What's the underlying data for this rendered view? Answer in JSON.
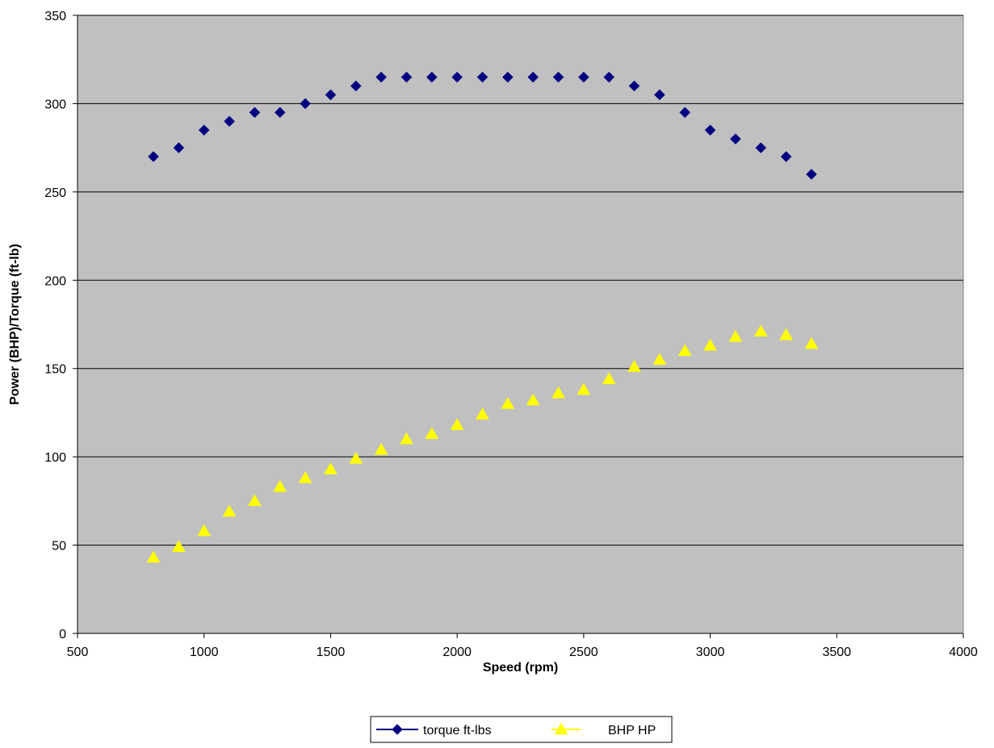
{
  "chart_data": {
    "type": "scatter",
    "title": "",
    "xlabel": "Speed (rpm)",
    "ylabel": "Power (BHP)/Torque (ft-lb)",
    "xlim": [
      500,
      4000
    ],
    "ylim": [
      0,
      350
    ],
    "xticks": [
      500,
      1000,
      1500,
      2000,
      2500,
      3000,
      3500,
      4000
    ],
    "yticks": [
      0,
      50,
      100,
      150,
      200,
      250,
      300,
      350
    ],
    "grid": "horizontal",
    "legend_position": "bottom",
    "colors": {
      "plot_background": "#c0c0c0",
      "gridline": "#000000"
    },
    "series": [
      {
        "name": "torque ft-lbs",
        "marker": "diamond",
        "color": "#000080",
        "x": [
          800,
          900,
          1000,
          1100,
          1200,
          1300,
          1400,
          1500,
          1600,
          1700,
          1800,
          1900,
          2000,
          2100,
          2200,
          2300,
          2400,
          2500,
          2600,
          2700,
          2800,
          2900,
          3000,
          3100,
          3200,
          3300,
          3400
        ],
        "y": [
          270,
          275,
          285,
          290,
          295,
          295,
          300,
          305,
          310,
          315,
          315,
          315,
          315,
          315,
          315,
          315,
          315,
          315,
          315,
          310,
          305,
          295,
          285,
          280,
          275,
          270,
          260
        ]
      },
      {
        "name": "BHP HP",
        "marker": "triangle",
        "color": "#ffff00",
        "x": [
          800,
          900,
          1000,
          1100,
          1200,
          1300,
          1400,
          1500,
          1600,
          1700,
          1800,
          1900,
          2000,
          2100,
          2200,
          2300,
          2400,
          2500,
          2600,
          2700,
          2800,
          2900,
          3000,
          3100,
          3200,
          3300,
          3400
        ],
        "y": [
          43,
          49,
          58,
          69,
          75,
          83,
          88,
          93,
          99,
          104,
          110,
          113,
          118,
          124,
          130,
          132,
          136,
          138,
          144,
          151,
          155,
          160,
          163,
          168,
          171,
          169,
          164
        ]
      }
    ]
  }
}
